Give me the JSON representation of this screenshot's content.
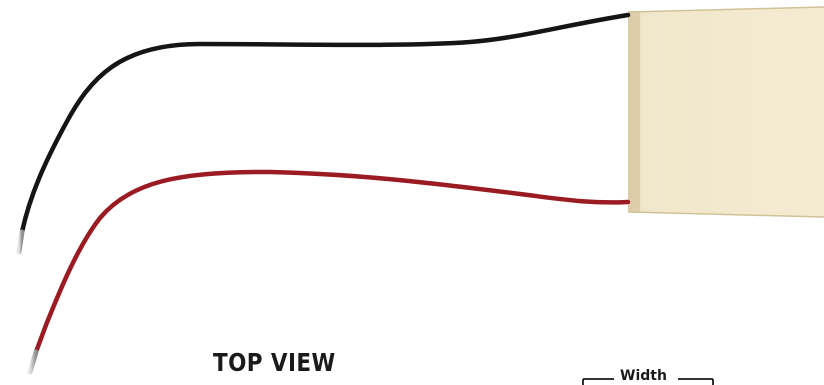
{
  "diagram": {
    "view_title": "TOP VIEW",
    "dimension_label": "Width",
    "colors": {
      "module_body": "#efe4c7",
      "module_edge": "#d8c9a3",
      "black_lead": "#151515",
      "red_lead": "#9b1b23",
      "tinned_tip": "#c9c9c9",
      "text": "#1a1a1a"
    }
  }
}
